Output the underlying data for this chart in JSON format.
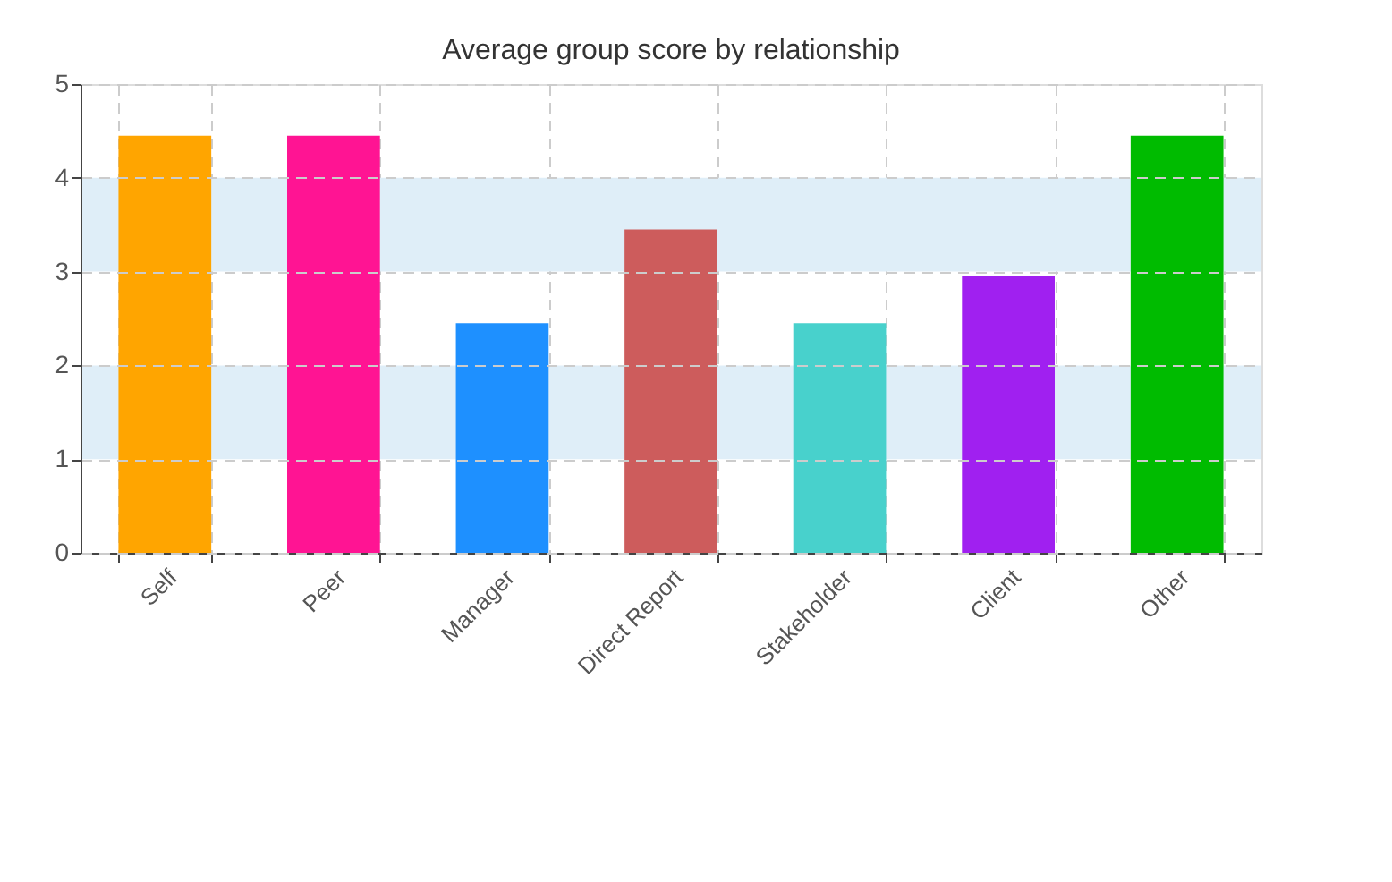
{
  "chart_data": {
    "type": "bar",
    "title": "Average group score by relationship",
    "categories": [
      "Self",
      "Peer",
      "Manager",
      "Direct Report",
      "Stakeholder",
      "Client",
      "Other"
    ],
    "values": [
      4.45,
      4.45,
      2.45,
      3.45,
      2.45,
      2.95,
      4.45
    ],
    "colors": [
      "#ffa500",
      "#ff1493",
      "#1e90ff",
      "#cd5c5c",
      "#48d1cc",
      "#a020f0",
      "#00bb00"
    ],
    "ylim": [
      0,
      5
    ],
    "yticks": [
      0,
      1,
      2,
      3,
      4,
      5
    ],
    "grid": true,
    "bands": [
      {
        "axis": "y",
        "from": 1,
        "to": 2,
        "color": "#dfeef8"
      },
      {
        "axis": "y",
        "from": 3,
        "to": 4,
        "color": "#dfeef8"
      }
    ]
  }
}
